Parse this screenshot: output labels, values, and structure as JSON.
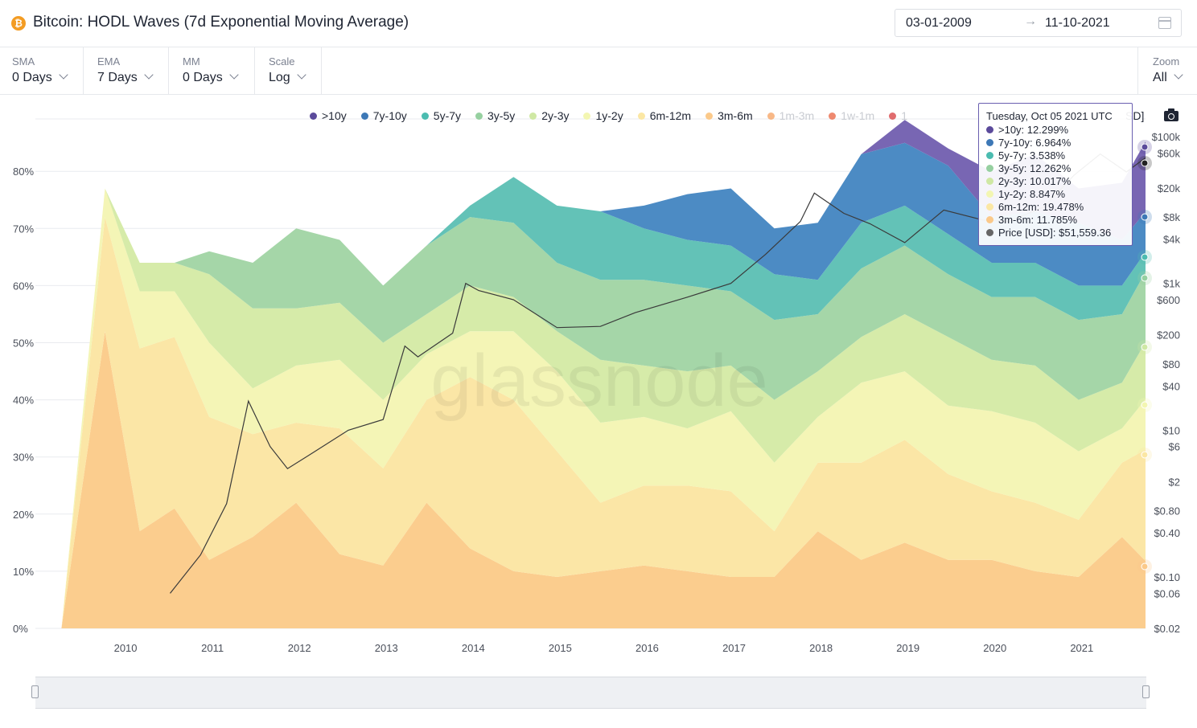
{
  "header": {
    "title": "Bitcoin: HODL Waves (7d Exponential Moving Average)",
    "coin_icon": "bitcoin-icon",
    "date_start": "03-01-2009",
    "date_arrow": "→",
    "date_end": "11-10-2021"
  },
  "controls": {
    "sma": {
      "label": "SMA",
      "value": "0 Days"
    },
    "ema": {
      "label": "EMA",
      "value": "7 Days"
    },
    "mm": {
      "label": "MM",
      "value": "0 Days"
    },
    "scale": {
      "label": "Scale",
      "value": "Log"
    },
    "zoom": {
      "label": "Zoom",
      "value": "All"
    }
  },
  "watermark": "glassnode",
  "tooltip": {
    "title": "Tuesday, Oct 05 2021 UTC",
    "rows": [
      {
        "label": ">10y",
        "value": "12.299%"
      },
      {
        "label": "7y-10y",
        "value": "6.964%"
      },
      {
        "label": "5y-7y",
        "value": "3.538%"
      },
      {
        "label": "3y-5y",
        "value": "12.262%"
      },
      {
        "label": "2y-3y",
        "value": "10.017%"
      },
      {
        "label": "1y-2y",
        "value": "8.847%"
      },
      {
        "label": "6m-12m",
        "value": "19.478%"
      },
      {
        "label": "3m-6m",
        "value": "11.785%"
      },
      {
        "label": "Price [USD]",
        "value": "$51,559.36"
      }
    ]
  },
  "navigator": {
    "labels": [
      "2010",
      "2012",
      "2014",
      "2016",
      "2018",
      "2020"
    ]
  },
  "chart_data": {
    "type": "area",
    "stacked": true,
    "x": [
      2009.3,
      2009.8,
      2010.2,
      2010.6,
      2011.0,
      2011.5,
      2012.0,
      2012.5,
      2013.0,
      2013.5,
      2014.0,
      2014.5,
      2015.0,
      2015.5,
      2016.0,
      2016.5,
      2017.0,
      2017.5,
      2018.0,
      2018.5,
      2019.0,
      2019.5,
      2020.0,
      2020.5,
      2021.0,
      2021.5,
      2021.77
    ],
    "x_ticks": [
      "2010",
      "2011",
      "2012",
      "2013",
      "2014",
      "2015",
      "2016",
      "2017",
      "2018",
      "2019",
      "2020",
      "2021"
    ],
    "y_left_ticks": [
      "0%",
      "10%",
      "20%",
      "30%",
      "40%",
      "50%",
      "60%",
      "70%",
      "80%"
    ],
    "y_left_range": [
      0,
      86
    ],
    "y_right_ticks": [
      "$100k",
      "$60k",
      "$20k",
      "$8k",
      "$4k",
      "$1k",
      "$600",
      "$200",
      "$80",
      "$40",
      "$10",
      "$6",
      "$2",
      "$0.80",
      "$0.40",
      "$0.10",
      "$0.06",
      "$0.02"
    ],
    "y_right_scale": "log",
    "legend": [
      {
        "name": ">10y",
        "color": "#5b4a9b",
        "active": true
      },
      {
        "name": "7y-10y",
        "color": "#3d78b6",
        "active": true
      },
      {
        "name": "5y-7y",
        "color": "#4bbcb0",
        "active": true
      },
      {
        "name": "3y-5y",
        "color": "#96d0a0",
        "active": true
      },
      {
        "name": "2y-3y",
        "color": "#cfe8a4",
        "active": true
      },
      {
        "name": "1y-2y",
        "color": "#f3f6b2",
        "active": true
      },
      {
        "name": "6m-12m",
        "color": "#fbe7a4",
        "active": true
      },
      {
        "name": "3m-6m",
        "color": "#fbc98a",
        "active": true
      },
      {
        "name": "1m-3m",
        "color": "#f5a05f",
        "active": false
      },
      {
        "name": "1w-1m",
        "color": "#e8623f",
        "active": false
      },
      {
        "name": "1",
        "color": "#d53b3e",
        "active": false
      }
    ],
    "legend_trailing_text": "SD]",
    "series": [
      {
        "name": "3m-6m",
        "color": "#fbcd8e",
        "values": [
          0,
          52,
          17,
          21,
          12,
          16,
          22,
          13,
          11,
          22,
          14,
          10,
          9,
          10,
          11,
          10,
          9,
          9,
          17,
          12,
          15,
          12,
          12,
          10,
          9,
          16,
          11.8
        ]
      },
      {
        "name": "6m-12m",
        "color": "#fbe6a6",
        "values": [
          0,
          20,
          32,
          30,
          25,
          18,
          14,
          22,
          17,
          18,
          30,
          30,
          22,
          12,
          14,
          15,
          15,
          8,
          12,
          17,
          18,
          15,
          12,
          12,
          10,
          13,
          19.5
        ]
      },
      {
        "name": "1y-2y",
        "color": "#f4f5b6",
        "values": [
          0,
          5,
          10,
          8,
          13,
          8,
          10,
          12,
          12,
          8,
          8,
          12,
          14,
          14,
          12,
          10,
          14,
          12,
          8,
          14,
          12,
          12,
          14,
          14,
          12,
          6,
          8.8
        ]
      },
      {
        "name": "2y-3y",
        "color": "#d6eba9",
        "values": [
          0,
          0,
          5,
          5,
          12,
          14,
          10,
          10,
          10,
          7,
          8,
          6,
          7,
          11,
          9,
          10,
          8,
          11,
          8,
          8,
          10,
          12,
          9,
          10,
          9,
          8,
          10.0
        ]
      },
      {
        "name": "3y-5y",
        "color": "#a5d6a8",
        "values": [
          0,
          0,
          0,
          0,
          4,
          8,
          14,
          11,
          10,
          12,
          12,
          13,
          12,
          14,
          15,
          15,
          13,
          14,
          10,
          12,
          12,
          11,
          11,
          12,
          14,
          12,
          12.3
        ]
      },
      {
        "name": "5y-7y",
        "color": "#63c2b7",
        "values": [
          0,
          0,
          0,
          0,
          0,
          0,
          0,
          0,
          0,
          0,
          2,
          8,
          10,
          12,
          9,
          8,
          8,
          8,
          6,
          8,
          7,
          7,
          6,
          6,
          6,
          5,
          3.5
        ]
      },
      {
        "name": "7y-10y",
        "color": "#4c8bc4",
        "values": [
          0,
          0,
          0,
          0,
          0,
          0,
          0,
          0,
          0,
          0,
          0,
          0,
          0,
          0,
          4,
          8,
          10,
          8,
          10,
          12,
          11,
          12,
          8,
          9,
          11,
          8,
          7.0
        ]
      },
      {
        "name": ">10y",
        "color": "#7866b3",
        "values": [
          0,
          0,
          0,
          0,
          0,
          0,
          0,
          0,
          0,
          0,
          0,
          0,
          0,
          0,
          0,
          0,
          0,
          0,
          0,
          0,
          4,
          3,
          8,
          10,
          6,
          10,
          12.3
        ]
      }
    ],
    "price_series": {
      "name": "Price [USD]",
      "x": [
        2010.55,
        2010.9,
        2011.2,
        2011.45,
        2011.7,
        2011.9,
        2012.2,
        2012.6,
        2013.0,
        2013.25,
        2013.4,
        2013.8,
        2013.95,
        2014.1,
        2014.5,
        2015.0,
        2015.5,
        2015.9,
        2016.5,
        2017.0,
        2017.4,
        2017.8,
        2017.96,
        2018.3,
        2018.6,
        2019.0,
        2019.45,
        2019.9,
        2020.2,
        2020.6,
        2020.95,
        2021.25,
        2021.55,
        2021.77
      ],
      "values": [
        0.06,
        0.2,
        1,
        25,
        6,
        3,
        5,
        10,
        14,
        140,
        100,
        210,
        1000,
        800,
        600,
        250,
        260,
        400,
        650,
        1000,
        2500,
        7000,
        17000,
        9000,
        6500,
        3600,
        10000,
        7300,
        7000,
        11000,
        30000,
        58000,
        33000,
        51559.36
      ]
    }
  }
}
